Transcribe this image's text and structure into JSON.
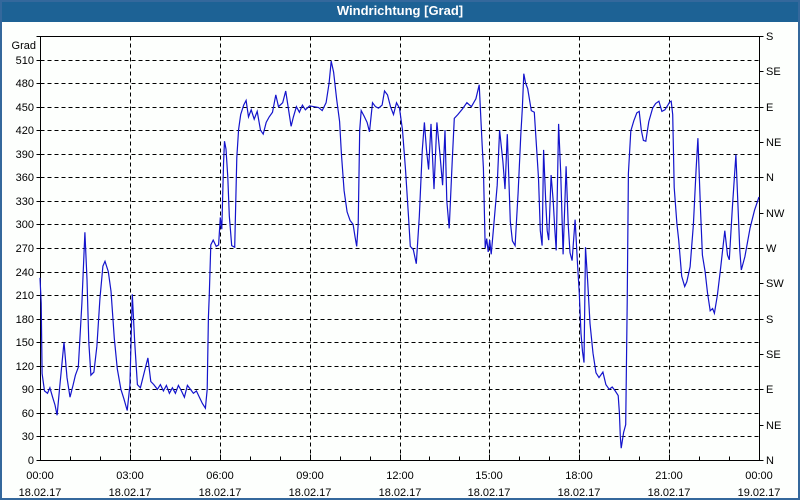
{
  "window": {
    "title": "Windrichtung [Grad]",
    "titlebar_color": "#1d6295",
    "border_color": "#34689c",
    "background": "#fdfffd"
  },
  "chart_data": {
    "type": "line",
    "title": "Windrichtung [Grad]",
    "ylabel": "Grad",
    "xlabel": "",
    "ylim": [
      0,
      540
    ],
    "xlim_hours": [
      0,
      24
    ],
    "grid": {
      "horizontal_every_deg": 30,
      "vertical_every_hours": 3,
      "style": "dashed"
    },
    "line_color": "#1414cc",
    "axis_color": "#000000",
    "y_ticks": [
      0,
      30,
      60,
      90,
      120,
      150,
      180,
      210,
      240,
      270,
      300,
      330,
      360,
      390,
      420,
      450,
      480,
      510
    ],
    "x_ticks": [
      {
        "hour": 0,
        "time": "00:00",
        "date": "18.02.17"
      },
      {
        "hour": 3,
        "time": "03:00",
        "date": "18.02.17"
      },
      {
        "hour": 6,
        "time": "06:00",
        "date": "18.02.17"
      },
      {
        "hour": 9,
        "time": "09:00",
        "date": "18.02.17"
      },
      {
        "hour": 12,
        "time": "12:00",
        "date": "18.02.17"
      },
      {
        "hour": 15,
        "time": "15:00",
        "date": "18.02.17"
      },
      {
        "hour": 18,
        "time": "18:00",
        "date": "18.02.17"
      },
      {
        "hour": 21,
        "time": "21:00",
        "date": "18.02.17"
      },
      {
        "hour": 24,
        "time": "00:00",
        "date": "19.02.17"
      }
    ],
    "x_minor_tick_every_hours": 1,
    "right_axis_ticks": [
      {
        "deg": 0,
        "label": "N"
      },
      {
        "deg": 45,
        "label": "NE"
      },
      {
        "deg": 90,
        "label": "E"
      },
      {
        "deg": 135,
        "label": "SE"
      },
      {
        "deg": 180,
        "label": "S"
      },
      {
        "deg": 225,
        "label": "SW"
      },
      {
        "deg": 270,
        "label": "W"
      },
      {
        "deg": 315,
        "label": "NW"
      },
      {
        "deg": 360,
        "label": "N"
      },
      {
        "deg": 405,
        "label": "NE"
      },
      {
        "deg": 450,
        "label": "E"
      },
      {
        "deg": 495,
        "label": "SE"
      },
      {
        "deg": 540,
        "label": "S"
      }
    ],
    "series": [
      {
        "name": "Windrichtung",
        "points": [
          [
            0.0,
            232
          ],
          [
            0.04,
            200
          ],
          [
            0.07,
            110
          ],
          [
            0.15,
            88
          ],
          [
            0.25,
            85
          ],
          [
            0.33,
            92
          ],
          [
            0.42,
            80
          ],
          [
            0.5,
            70
          ],
          [
            0.57,
            57
          ],
          [
            0.65,
            90
          ],
          [
            0.8,
            150
          ],
          [
            0.9,
            105
          ],
          [
            1.0,
            80
          ],
          [
            1.1,
            95
          ],
          [
            1.18,
            108
          ],
          [
            1.28,
            118
          ],
          [
            1.4,
            200
          ],
          [
            1.5,
            290
          ],
          [
            1.57,
            230
          ],
          [
            1.63,
            150
          ],
          [
            1.7,
            108
          ],
          [
            1.8,
            112
          ],
          [
            1.9,
            145
          ],
          [
            2.0,
            205
          ],
          [
            2.1,
            247
          ],
          [
            2.17,
            253
          ],
          [
            2.28,
            240
          ],
          [
            2.37,
            215
          ],
          [
            2.48,
            155
          ],
          [
            2.58,
            116
          ],
          [
            2.7,
            90
          ],
          [
            2.8,
            78
          ],
          [
            2.91,
            63
          ],
          [
            3.0,
            95
          ],
          [
            3.08,
            211
          ],
          [
            3.16,
            150
          ],
          [
            3.25,
            96
          ],
          [
            3.35,
            92
          ],
          [
            3.48,
            112
          ],
          [
            3.6,
            130
          ],
          [
            3.7,
            100
          ],
          [
            3.8,
            96
          ],
          [
            3.92,
            90
          ],
          [
            4.02,
            96
          ],
          [
            4.12,
            88
          ],
          [
            4.22,
            95
          ],
          [
            4.32,
            85
          ],
          [
            4.42,
            92
          ],
          [
            4.52,
            85
          ],
          [
            4.62,
            95
          ],
          [
            4.72,
            88
          ],
          [
            4.82,
            80
          ],
          [
            4.92,
            95
          ],
          [
            5.02,
            90
          ],
          [
            5.12,
            85
          ],
          [
            5.22,
            88
          ],
          [
            5.32,
            80
          ],
          [
            5.42,
            72
          ],
          [
            5.52,
            66
          ],
          [
            5.58,
            90
          ],
          [
            5.62,
            181
          ],
          [
            5.65,
            211
          ],
          [
            5.7,
            274
          ],
          [
            5.78,
            280
          ],
          [
            5.88,
            272
          ],
          [
            5.96,
            274
          ],
          [
            6.02,
            309
          ],
          [
            6.07,
            294
          ],
          [
            6.13,
            380
          ],
          [
            6.16,
            406
          ],
          [
            6.21,
            396
          ],
          [
            6.27,
            360
          ],
          [
            6.32,
            311
          ],
          [
            6.4,
            273
          ],
          [
            6.5,
            271
          ],
          [
            6.57,
            385
          ],
          [
            6.63,
            421
          ],
          [
            6.7,
            440
          ],
          [
            6.8,
            452
          ],
          [
            6.88,
            458
          ],
          [
            6.96,
            437
          ],
          [
            7.05,
            446
          ],
          [
            7.15,
            434
          ],
          [
            7.25,
            444
          ],
          [
            7.36,
            420
          ],
          [
            7.45,
            415
          ],
          [
            7.55,
            430
          ],
          [
            7.65,
            437
          ],
          [
            7.76,
            443
          ],
          [
            7.87,
            465
          ],
          [
            7.96,
            450
          ],
          [
            8.1,
            455
          ],
          [
            8.2,
            470
          ],
          [
            8.3,
            445
          ],
          [
            8.38,
            425
          ],
          [
            8.46,
            437
          ],
          [
            8.56,
            450
          ],
          [
            8.66,
            443
          ],
          [
            8.76,
            452
          ],
          [
            8.86,
            446
          ],
          [
            9.0,
            451
          ],
          [
            9.15,
            450
          ],
          [
            9.3,
            449
          ],
          [
            9.42,
            445
          ],
          [
            9.55,
            455
          ],
          [
            9.65,
            480
          ],
          [
            9.72,
            508
          ],
          [
            9.8,
            494
          ],
          [
            9.9,
            460
          ],
          [
            10.0,
            431
          ],
          [
            10.06,
            390
          ],
          [
            10.15,
            343
          ],
          [
            10.25,
            316
          ],
          [
            10.35,
            305
          ],
          [
            10.45,
            300
          ],
          [
            10.52,
            283
          ],
          [
            10.57,
            272
          ],
          [
            10.62,
            300
          ],
          [
            10.67,
            420
          ],
          [
            10.72,
            445
          ],
          [
            10.82,
            438
          ],
          [
            10.92,
            430
          ],
          [
            11.0,
            418
          ],
          [
            11.1,
            455
          ],
          [
            11.2,
            450
          ],
          [
            11.3,
            448
          ],
          [
            11.42,
            452
          ],
          [
            11.5,
            470
          ],
          [
            11.6,
            465
          ],
          [
            11.7,
            450
          ],
          [
            11.8,
            440
          ],
          [
            11.9,
            455
          ],
          [
            12.0,
            448
          ],
          [
            12.1,
            420
          ],
          [
            12.2,
            370
          ],
          [
            12.3,
            310
          ],
          [
            12.36,
            272
          ],
          [
            12.46,
            268
          ],
          [
            12.56,
            250
          ],
          [
            12.66,
            310
          ],
          [
            12.76,
            395
          ],
          [
            12.83,
            430
          ],
          [
            12.9,
            395
          ],
          [
            12.97,
            370
          ],
          [
            13.05,
            428
          ],
          [
            13.15,
            345
          ],
          [
            13.25,
            430
          ],
          [
            13.35,
            390
          ],
          [
            13.44,
            350
          ],
          [
            13.52,
            420
          ],
          [
            13.58,
            330
          ],
          [
            13.66,
            295
          ],
          [
            13.76,
            380
          ],
          [
            13.83,
            435
          ],
          [
            13.95,
            440
          ],
          [
            14.1,
            447
          ],
          [
            14.25,
            455
          ],
          [
            14.4,
            450
          ],
          [
            14.55,
            460
          ],
          [
            14.66,
            478
          ],
          [
            14.76,
            400
          ],
          [
            14.8,
            372
          ],
          [
            14.86,
            270
          ],
          [
            14.91,
            282
          ],
          [
            14.96,
            265
          ],
          [
            15.01,
            280
          ],
          [
            15.06,
            262
          ],
          [
            15.13,
            292
          ],
          [
            15.26,
            350
          ],
          [
            15.34,
            420
          ],
          [
            15.45,
            380
          ],
          [
            15.52,
            345
          ],
          [
            15.6,
            415
          ],
          [
            15.7,
            304
          ],
          [
            15.77,
            279
          ],
          [
            15.86,
            273
          ],
          [
            15.96,
            340
          ],
          [
            16.05,
            414
          ],
          [
            16.1,
            447
          ],
          [
            16.15,
            492
          ],
          [
            16.21,
            480
          ],
          [
            16.28,
            473
          ],
          [
            16.4,
            445
          ],
          [
            16.5,
            443
          ],
          [
            16.57,
            401
          ],
          [
            16.64,
            359
          ],
          [
            16.7,
            292
          ],
          [
            16.76,
            273
          ],
          [
            16.81,
            395
          ],
          [
            16.88,
            330
          ],
          [
            16.93,
            292
          ],
          [
            16.98,
            280
          ],
          [
            17.06,
            363
          ],
          [
            17.13,
            330
          ],
          [
            17.18,
            296
          ],
          [
            17.23,
            267
          ],
          [
            17.31,
            428
          ],
          [
            17.38,
            366
          ],
          [
            17.46,
            262
          ],
          [
            17.56,
            374
          ],
          [
            17.63,
            300
          ],
          [
            17.69,
            264
          ],
          [
            17.76,
            254
          ],
          [
            17.86,
            306
          ],
          [
            17.94,
            250
          ],
          [
            18.0,
            212
          ],
          [
            18.06,
            161
          ],
          [
            18.11,
            138
          ],
          [
            18.16,
            124
          ],
          [
            18.21,
            271
          ],
          [
            18.28,
            229
          ],
          [
            18.36,
            174
          ],
          [
            18.46,
            136
          ],
          [
            18.56,
            111
          ],
          [
            18.66,
            105
          ],
          [
            18.79,
            112
          ],
          [
            18.89,
            96
          ],
          [
            19.0,
            90
          ],
          [
            19.1,
            93
          ],
          [
            19.2,
            88
          ],
          [
            19.3,
            82
          ],
          [
            19.34,
            60
          ],
          [
            19.37,
            30
          ],
          [
            19.4,
            15
          ],
          [
            19.48,
            35
          ],
          [
            19.55,
            45
          ],
          [
            19.6,
            200
          ],
          [
            19.64,
            365
          ],
          [
            19.72,
            419
          ],
          [
            19.82,
            432
          ],
          [
            19.92,
            442
          ],
          [
            20.0,
            444
          ],
          [
            20.07,
            420
          ],
          [
            20.14,
            407
          ],
          [
            20.22,
            406
          ],
          [
            20.32,
            431
          ],
          [
            20.45,
            448
          ],
          [
            20.55,
            454
          ],
          [
            20.66,
            457
          ],
          [
            20.76,
            444
          ],
          [
            20.86,
            446
          ],
          [
            20.96,
            452
          ],
          [
            21.02,
            456
          ],
          [
            21.07,
            457
          ],
          [
            21.12,
            440
          ],
          [
            21.17,
            347
          ],
          [
            21.26,
            301
          ],
          [
            21.32,
            280
          ],
          [
            21.42,
            234
          ],
          [
            21.52,
            221
          ],
          [
            21.59,
            227
          ],
          [
            21.7,
            246
          ],
          [
            21.81,
            300
          ],
          [
            21.9,
            370
          ],
          [
            21.96,
            410
          ],
          [
            22.05,
            316
          ],
          [
            22.11,
            261
          ],
          [
            22.2,
            240
          ],
          [
            22.28,
            213
          ],
          [
            22.37,
            190
          ],
          [
            22.45,
            193
          ],
          [
            22.51,
            187
          ],
          [
            22.61,
            210
          ],
          [
            22.71,
            242
          ],
          [
            22.86,
            292
          ],
          [
            22.95,
            261
          ],
          [
            23.01,
            255
          ],
          [
            23.11,
            320
          ],
          [
            23.23,
            389
          ],
          [
            23.3,
            323
          ],
          [
            23.36,
            267
          ],
          [
            23.41,
            242
          ],
          [
            23.53,
            259
          ],
          [
            23.7,
            295
          ],
          [
            23.85,
            318
          ],
          [
            24.0,
            335
          ]
        ]
      }
    ]
  }
}
